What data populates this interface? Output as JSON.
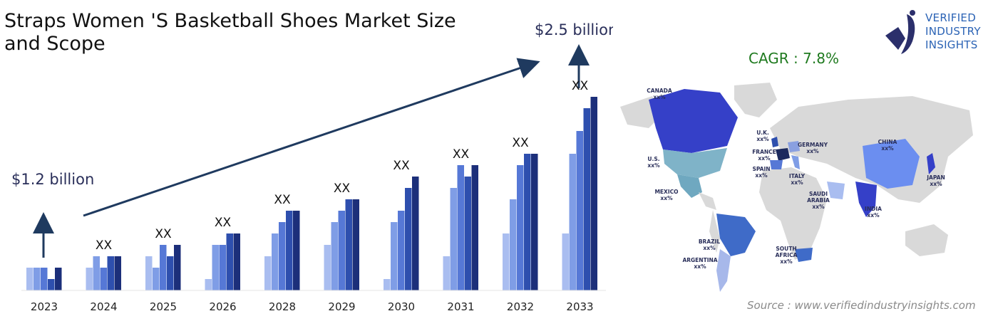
{
  "title": "Straps Women 'S Basketball Shoes Market Size and Scope",
  "brand": {
    "line1": "VERIFIED",
    "line2": "INDUSTRY",
    "line3": "INSIGHTS"
  },
  "cagr": "CAGR : 7.8%",
  "source": "Source : www.verifiedindustryinsights.com",
  "chart_data": {
    "type": "bar",
    "categories": [
      "2023",
      "2024",
      "2025",
      "2026",
      "2028",
      "2029",
      "2030",
      "2031",
      "2032",
      "2033"
    ],
    "bar_labels": [
      "",
      "XX",
      "XX",
      "XX",
      "XX",
      "XX",
      "XX",
      "XX",
      "XX",
      "XX"
    ],
    "start_value_label": "$1.2 billion",
    "end_value_label": "$2.5 billion",
    "series": [
      {
        "values": [
          2,
          2,
          3,
          1,
          3,
          4,
          1,
          3,
          5,
          5
        ]
      },
      {
        "values": [
          2,
          3,
          2,
          4,
          5,
          6,
          6,
          9,
          8,
          12
        ]
      },
      {
        "values": [
          2,
          2,
          4,
          4,
          6,
          7,
          7,
          11,
          11,
          14
        ]
      },
      {
        "values": [
          1,
          3,
          3,
          5,
          7,
          8,
          9,
          10,
          12,
          16
        ]
      },
      {
        "values": [
          2,
          3,
          4,
          5,
          7,
          8,
          10,
          11,
          12,
          17
        ]
      }
    ],
    "colors": [
      "#a9bdf0",
      "#7f9de6",
      "#5678d6",
      "#2e4fae",
      "#1c2f7a"
    ]
  },
  "map_regions": [
    {
      "name": "CANADA",
      "value": "xx%",
      "color": "#3540c8"
    },
    {
      "name": "U.S.",
      "value": "xx%",
      "color": "#7fb3c8"
    },
    {
      "name": "MEXICO",
      "value": "xx%",
      "color": "#6fa8c0"
    },
    {
      "name": "BRAZIL",
      "value": "xx%",
      "color": "#3f6bc8"
    },
    {
      "name": "ARGENTINA",
      "value": "xx%",
      "color": "#a7b8ea"
    },
    {
      "name": "U.K.",
      "value": "xx%",
      "color": "#2e4fae"
    },
    {
      "name": "FRANCE",
      "value": "xx%",
      "color": "#1c2a5e"
    },
    {
      "name": "GERMANY",
      "value": "xx%",
      "color": "#8aa0e0"
    },
    {
      "name": "SPAIN",
      "value": "xx%",
      "color": "#5678d6"
    },
    {
      "name": "ITALY",
      "value": "xx%",
      "color": "#7f9de6"
    },
    {
      "name": "SAUDI ARABIA",
      "value": "xx%",
      "color": "#a9bdf0"
    },
    {
      "name": "SOUTH AFRICA",
      "value": "xx%",
      "color": "#3f6bc8"
    },
    {
      "name": "CHINA",
      "value": "xx%",
      "color": "#6b8ef0"
    },
    {
      "name": "INDIA",
      "value": "xx%",
      "color": "#3540c8"
    },
    {
      "name": "JAPAN",
      "value": "xx%",
      "color": "#3540c8"
    }
  ]
}
